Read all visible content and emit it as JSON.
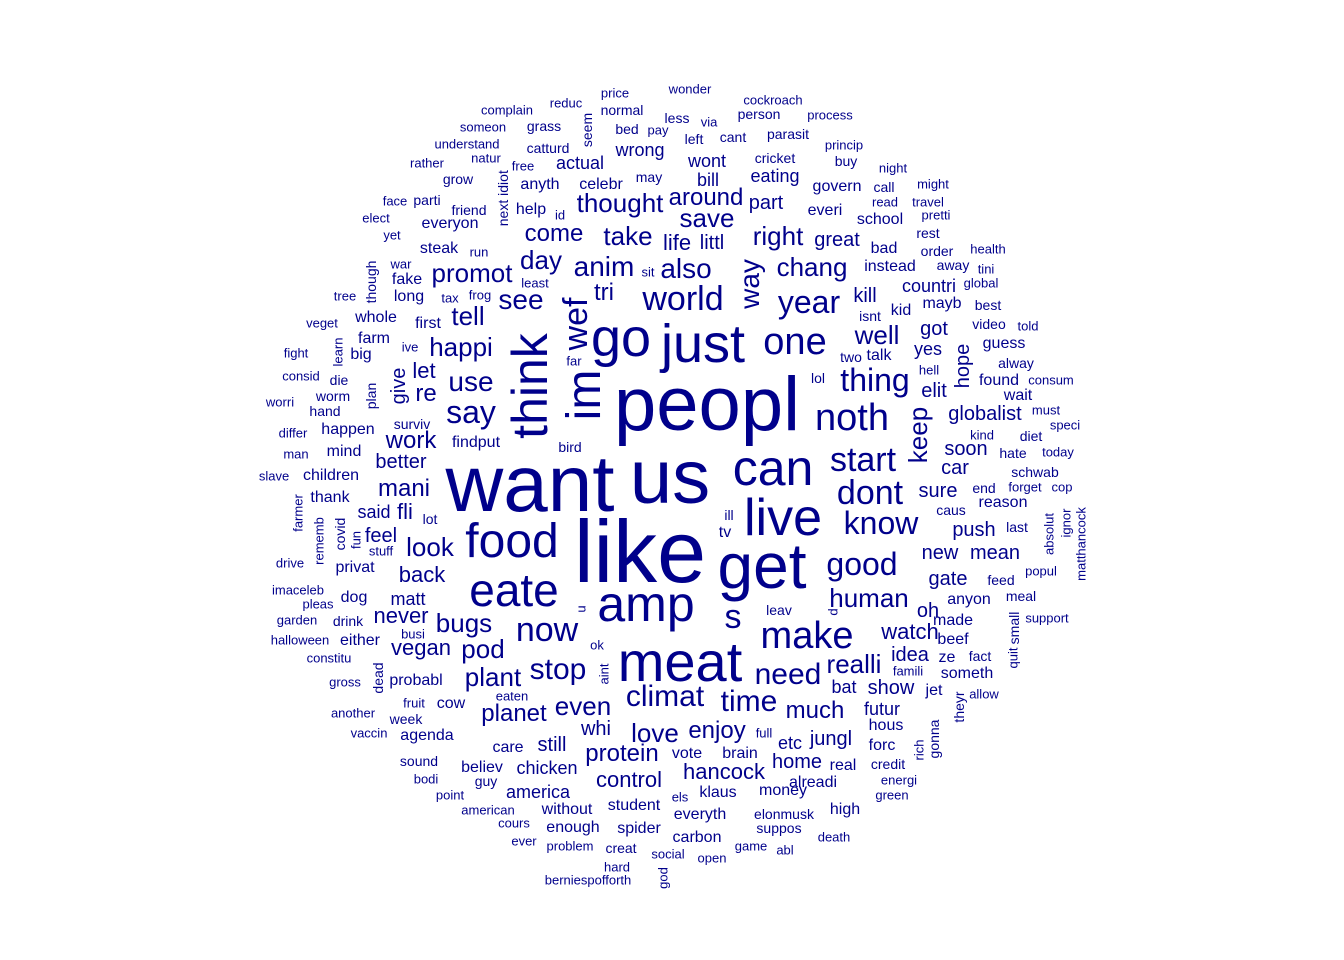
{
  "color": "#00008B",
  "words": [
    {
      "t": "peopl",
      "w": 10
    },
    {
      "t": "want",
      "w": 10
    },
    {
      "t": "us",
      "w": 10
    },
    {
      "t": "like",
      "w": 10
    },
    {
      "t": "get",
      "w": 9
    },
    {
      "t": "meat",
      "w": 9
    },
    {
      "t": "can",
      "w": 8
    },
    {
      "t": "live",
      "w": 8
    },
    {
      "t": "just",
      "w": 8
    },
    {
      "t": "go",
      "w": 8
    },
    {
      "t": "amp",
      "w": 8
    },
    {
      "t": "eate",
      "w": 8
    },
    {
      "t": "food",
      "w": 8
    },
    {
      "t": "think",
      "w": 8
    },
    {
      "t": "im",
      "w": 8
    },
    {
      "t": "make",
      "w": 7
    },
    {
      "t": "one",
      "w": 7
    },
    {
      "t": "noth",
      "w": 7
    },
    {
      "t": "world",
      "w": 6
    },
    {
      "t": "wef",
      "w": 6
    },
    {
      "t": "now",
      "w": 6
    },
    {
      "t": "start",
      "w": 6
    },
    {
      "t": "dont",
      "w": 6
    },
    {
      "t": "know",
      "w": 6
    },
    {
      "t": "good",
      "w": 6
    },
    {
      "t": "year",
      "w": 6
    },
    {
      "t": "thing",
      "w": 6
    },
    {
      "t": "say",
      "w": 6
    },
    {
      "t": "stop",
      "w": 6
    },
    {
      "t": "climat",
      "w": 6
    },
    {
      "t": "s",
      "w": 6
    },
    {
      "t": "need",
      "w": 5
    },
    {
      "t": "time",
      "w": 5
    },
    {
      "t": "human",
      "w": 5
    },
    {
      "t": "chang",
      "w": 5
    },
    {
      "t": "right",
      "w": 5
    },
    {
      "t": "anim",
      "w": 5
    },
    {
      "t": "also",
      "w": 5
    },
    {
      "t": "see",
      "w": 5
    },
    {
      "t": "use",
      "w": 5
    },
    {
      "t": "well",
      "w": 5
    },
    {
      "t": "way",
      "w": 5
    },
    {
      "t": "save",
      "w": 5
    },
    {
      "t": "take",
      "w": 5
    },
    {
      "t": "even",
      "w": 5
    },
    {
      "t": "love",
      "w": 5
    },
    {
      "t": "realli",
      "w": 5
    },
    {
      "t": "keep",
      "w": 5
    },
    {
      "t": "bugs",
      "w": 5
    },
    {
      "t": "pod",
      "w": 5
    },
    {
      "t": "plant",
      "w": 5
    },
    {
      "t": "look",
      "w": 5
    },
    {
      "t": "happi",
      "w": 5
    },
    {
      "t": "tell",
      "w": 5
    },
    {
      "t": "promot",
      "w": 5
    },
    {
      "t": "day",
      "w": 5
    },
    {
      "t": "come",
      "w": 5
    },
    {
      "t": "thought",
      "w": 5
    },
    {
      "t": "around",
      "w": 5
    },
    {
      "t": "planet",
      "w": 5
    },
    {
      "t": "much",
      "w": 5
    },
    {
      "t": "enjoy",
      "w": 5
    },
    {
      "t": "protein",
      "w": 5
    },
    {
      "t": "mani",
      "w": 5
    },
    {
      "t": "work",
      "w": 5
    },
    {
      "t": "re",
      "w": 5
    },
    {
      "t": "let",
      "w": 5
    },
    {
      "t": "tri",
      "w": 5
    },
    {
      "t": "watch",
      "w": 4
    },
    {
      "t": "hancock",
      "w": 4
    },
    {
      "t": "control",
      "w": 4
    },
    {
      "t": "vegan",
      "w": 4
    },
    {
      "t": "never",
      "w": 4
    },
    {
      "t": "back",
      "w": 4
    },
    {
      "t": "feel",
      "w": 4
    },
    {
      "t": "fli",
      "w": 4
    },
    {
      "t": "better",
      "w": 4
    },
    {
      "t": "give",
      "w": 4
    },
    {
      "t": "life",
      "w": 4
    },
    {
      "t": "littl",
      "w": 4
    },
    {
      "t": "part",
      "w": 4
    },
    {
      "t": "great",
      "w": 4
    },
    {
      "t": "kill",
      "w": 4
    },
    {
      "t": "countri",
      "w": 4
    },
    {
      "t": "got",
      "w": 4
    },
    {
      "t": "yes",
      "w": 4
    },
    {
      "t": "hope",
      "w": 4
    },
    {
      "t": "elit",
      "w": 4
    },
    {
      "t": "globalist",
      "w": 4
    },
    {
      "t": "soon",
      "w": 4
    },
    {
      "t": "car",
      "w": 4
    },
    {
      "t": "sure",
      "w": 4
    },
    {
      "t": "push",
      "w": 4
    },
    {
      "t": "new",
      "w": 4
    },
    {
      "t": "mean",
      "w": 4
    },
    {
      "t": "gate",
      "w": 4
    },
    {
      "t": "oh",
      "w": 4
    },
    {
      "t": "idea",
      "w": 4
    },
    {
      "t": "show",
      "w": 4
    },
    {
      "t": "bat",
      "w": 4
    },
    {
      "t": "futur",
      "w": 4
    },
    {
      "t": "jungl",
      "w": 4
    },
    {
      "t": "etc",
      "w": 4
    },
    {
      "t": "home",
      "w": 4
    },
    {
      "t": "still",
      "w": 4
    },
    {
      "t": "whi",
      "w": 4
    },
    {
      "t": "america",
      "w": 4
    },
    {
      "t": "chicken",
      "w": 4
    },
    {
      "t": "matt",
      "w": 4
    },
    {
      "t": "said",
      "w": 4
    },
    {
      "t": "talk",
      "w": 4
    },
    {
      "t": "everi",
      "w": 4
    },
    {
      "t": "bill",
      "w": 4
    },
    {
      "t": "wont",
      "w": 4
    },
    {
      "t": "eating",
      "w": 4
    },
    {
      "t": "actual",
      "w": 4
    },
    {
      "t": "anyth",
      "w": 4
    },
    {
      "t": "wrong",
      "w": 4
    },
    {
      "t": "made",
      "w": 4
    },
    {
      "t": "beef",
      "w": 4
    },
    {
      "t": "money",
      "w": 4
    },
    {
      "t": "klaus",
      "w": 4
    },
    {
      "t": "vote",
      "w": 4
    },
    {
      "t": "tv",
      "w": 4
    },
    {
      "t": "instead",
      "w": 3
    },
    {
      "t": "school",
      "w": 3
    },
    {
      "t": "bad",
      "w": 3
    },
    {
      "t": "govern",
      "w": 3
    },
    {
      "t": "kid",
      "w": 3
    },
    {
      "t": "mayb",
      "w": 3
    },
    {
      "t": "first",
      "w": 3
    },
    {
      "t": "farm",
      "w": 3
    },
    {
      "t": "whole",
      "w": 3
    },
    {
      "t": "long",
      "w": 3
    },
    {
      "t": "fake",
      "w": 3
    },
    {
      "t": "steak",
      "w": 3
    },
    {
      "t": "everyon",
      "w": 3
    },
    {
      "t": "help",
      "w": 3
    },
    {
      "t": "celebr",
      "w": 3
    },
    {
      "t": "lol",
      "w": 3
    },
    {
      "t": "two",
      "w": 3
    },
    {
      "t": "guess",
      "w": 3
    },
    {
      "t": "found",
      "w": 3
    },
    {
      "t": "wait",
      "w": 3
    },
    {
      "t": "diet",
      "w": 3
    },
    {
      "t": "hate",
      "w": 3
    },
    {
      "t": "schwab",
      "w": 3
    },
    {
      "t": "end",
      "w": 3
    },
    {
      "t": "reason",
      "w": 3
    },
    {
      "t": "caus",
      "w": 3
    },
    {
      "t": "last",
      "w": 3
    },
    {
      "t": "anyon",
      "w": 3
    },
    {
      "t": "feed",
      "w": 3
    },
    {
      "t": "meal",
      "w": 3
    },
    {
      "t": "ze",
      "w": 3
    },
    {
      "t": "someth",
      "w": 3
    },
    {
      "t": "fact",
      "w": 3
    },
    {
      "t": "jet",
      "w": 3
    },
    {
      "t": "hous",
      "w": 3
    },
    {
      "t": "forc",
      "w": 3
    },
    {
      "t": "credit",
      "w": 3
    },
    {
      "t": "real",
      "w": 3
    },
    {
      "t": "alreadi",
      "w": 3
    },
    {
      "t": "high",
      "w": 3
    },
    {
      "t": "suppos",
      "w": 3
    },
    {
      "t": "elonmusk",
      "w": 3
    },
    {
      "t": "everyth",
      "w": 3
    },
    {
      "t": "carbon",
      "w": 3
    },
    {
      "t": "spider",
      "w": 3
    },
    {
      "t": "student",
      "w": 3
    },
    {
      "t": "enough",
      "w": 3
    },
    {
      "t": "without",
      "w": 3
    },
    {
      "t": "creat",
      "w": 3
    },
    {
      "t": "care",
      "w": 3
    },
    {
      "t": "believ",
      "w": 3
    },
    {
      "t": "guy",
      "w": 3
    },
    {
      "t": "brain",
      "w": 3
    },
    {
      "t": "cow",
      "w": 3
    },
    {
      "t": "agenda",
      "w": 3
    },
    {
      "t": "week",
      "w": 3
    },
    {
      "t": "probabl",
      "w": 3
    },
    {
      "t": "sound",
      "w": 3
    },
    {
      "t": "drink",
      "w": 3
    },
    {
      "t": "dog",
      "w": 3
    },
    {
      "t": "either",
      "w": 3
    },
    {
      "t": "privat",
      "w": 3
    },
    {
      "t": "covid",
      "w": 3
    },
    {
      "t": "children",
      "w": 3
    },
    {
      "t": "thank",
      "w": 3
    },
    {
      "t": "happen",
      "w": 3
    },
    {
      "t": "mind",
      "w": 3
    },
    {
      "t": "surviv",
      "w": 3
    },
    {
      "t": "findput",
      "w": 3
    },
    {
      "t": "lot",
      "w": 3
    },
    {
      "t": "big",
      "w": 3
    },
    {
      "t": "die",
      "w": 3
    },
    {
      "t": "worm",
      "w": 3
    },
    {
      "t": "hand",
      "w": 3
    },
    {
      "t": "plan",
      "w": 3
    },
    {
      "t": "gonna",
      "w": 3
    },
    {
      "t": "theyr",
      "w": 3
    },
    {
      "t": "small",
      "w": 3
    },
    {
      "t": "seem",
      "w": 3
    },
    {
      "t": "idiot",
      "w": 3
    },
    {
      "t": "next",
      "w": 3
    },
    {
      "t": "though",
      "w": 3
    },
    {
      "t": "ill",
      "w": 3
    },
    {
      "t": "leav",
      "w": 3
    },
    {
      "t": "person",
      "w": 3
    },
    {
      "t": "parasit",
      "w": 3
    },
    {
      "t": "cricket",
      "w": 3
    },
    {
      "t": "cant",
      "w": 3
    },
    {
      "t": "left",
      "w": 3
    },
    {
      "t": "less",
      "w": 3
    },
    {
      "t": "catturd",
      "w": 3
    },
    {
      "t": "grass",
      "w": 3
    },
    {
      "t": "bed",
      "w": 3
    },
    {
      "t": "normal",
      "w": 3
    },
    {
      "t": "may",
      "w": 3
    },
    {
      "t": "grow",
      "w": 3
    },
    {
      "t": "friend",
      "w": 3
    },
    {
      "t": "parti",
      "w": 3
    },
    {
      "t": "rest",
      "w": 3
    },
    {
      "t": "order",
      "w": 3
    },
    {
      "t": "away",
      "w": 3
    },
    {
      "t": "call",
      "w": 3
    },
    {
      "t": "buy",
      "w": 3
    },
    {
      "t": "isnt",
      "w": 3
    },
    {
      "t": "video",
      "w": 3
    },
    {
      "t": "best",
      "w": 3
    },
    {
      "t": "alway",
      "w": 3
    },
    {
      "t": "bird",
      "w": 3
    },
    {
      "t": "busi",
      "w": 3
    },
    {
      "t": "gross",
      "w": 3
    },
    {
      "t": "dead",
      "w": 3
    },
    {
      "t": "wonder",
      "w": 2
    },
    {
      "t": "price",
      "w": 2
    },
    {
      "t": "cockroach",
      "w": 2
    },
    {
      "t": "complain",
      "w": 2
    },
    {
      "t": "reduc",
      "w": 2
    },
    {
      "t": "via",
      "w": 2
    },
    {
      "t": "process",
      "w": 2
    },
    {
      "t": "someon",
      "w": 2
    },
    {
      "t": "pay",
      "w": 2
    },
    {
      "t": "understand",
      "w": 2
    },
    {
      "t": "princip",
      "w": 2
    },
    {
      "t": "rather",
      "w": 2
    },
    {
      "t": "natur",
      "w": 2
    },
    {
      "t": "free",
      "w": 2
    },
    {
      "t": "night",
      "w": 2
    },
    {
      "t": "might",
      "w": 2
    },
    {
      "t": "face",
      "w": 2
    },
    {
      "t": "read",
      "w": 2
    },
    {
      "t": "travel",
      "w": 2
    },
    {
      "t": "elect",
      "w": 2
    },
    {
      "t": "id",
      "w": 2
    },
    {
      "t": "pretti",
      "w": 2
    },
    {
      "t": "yet",
      "w": 2
    },
    {
      "t": "run",
      "w": 2
    },
    {
      "t": "health",
      "w": 2
    },
    {
      "t": "war",
      "w": 2
    },
    {
      "t": "sit",
      "w": 2
    },
    {
      "t": "tini",
      "w": 2
    },
    {
      "t": "least",
      "w": 2
    },
    {
      "t": "global",
      "w": 2
    },
    {
      "t": "tree",
      "w": 2
    },
    {
      "t": "tax",
      "w": 2
    },
    {
      "t": "frog",
      "w": 2
    },
    {
      "t": "veget",
      "w": 2
    },
    {
      "t": "told",
      "w": 2
    },
    {
      "t": "fight",
      "w": 2
    },
    {
      "t": "learn",
      "w": 2
    },
    {
      "t": "ive",
      "w": 2
    },
    {
      "t": "far",
      "w": 2
    },
    {
      "t": "consid",
      "w": 2
    },
    {
      "t": "hell",
      "w": 2
    },
    {
      "t": "consum",
      "w": 2
    },
    {
      "t": "worri",
      "w": 2
    },
    {
      "t": "must",
      "w": 2
    },
    {
      "t": "speci",
      "w": 2
    },
    {
      "t": "differ",
      "w": 2
    },
    {
      "t": "kind",
      "w": 2
    },
    {
      "t": "today",
      "w": 2
    },
    {
      "t": "man",
      "w": 2
    },
    {
      "t": "slave",
      "w": 2
    },
    {
      "t": "forget",
      "w": 2
    },
    {
      "t": "cop",
      "w": 2
    },
    {
      "t": "farmer",
      "w": 2
    },
    {
      "t": "rememb",
      "w": 2
    },
    {
      "t": "fun",
      "w": 2
    },
    {
      "t": "stuff",
      "w": 2
    },
    {
      "t": "absolut",
      "w": 2
    },
    {
      "t": "ignor",
      "w": 2
    },
    {
      "t": "matthancock",
      "w": 2
    },
    {
      "t": "drive",
      "w": 2
    },
    {
      "t": "popul",
      "w": 2
    },
    {
      "t": "imaceleb",
      "w": 2
    },
    {
      "t": "pleas",
      "w": 2
    },
    {
      "t": "u",
      "w": 2
    },
    {
      "t": "garden",
      "w": 2
    },
    {
      "t": "d",
      "w": 2
    },
    {
      "t": "support",
      "w": 2
    },
    {
      "t": "halloween",
      "w": 2
    },
    {
      "t": "ok",
      "w": 2
    },
    {
      "t": "quit",
      "w": 2
    },
    {
      "t": "constitu",
      "w": 2
    },
    {
      "t": "aint",
      "w": 2
    },
    {
      "t": "eaten",
      "w": 2
    },
    {
      "t": "famili",
      "w": 2
    },
    {
      "t": "allow",
      "w": 2
    },
    {
      "t": "fruit",
      "w": 2
    },
    {
      "t": "another",
      "w": 2
    },
    {
      "t": "full",
      "w": 2
    },
    {
      "t": "vaccin",
      "w": 2
    },
    {
      "t": "rich",
      "w": 2
    },
    {
      "t": "bodi",
      "w": 2
    },
    {
      "t": "energi",
      "w": 2
    },
    {
      "t": "point",
      "w": 2
    },
    {
      "t": "els",
      "w": 2
    },
    {
      "t": "green",
      "w": 2
    },
    {
      "t": "american",
      "w": 2
    },
    {
      "t": "cours",
      "w": 2
    },
    {
      "t": "death",
      "w": 2
    },
    {
      "t": "ever",
      "w": 2
    },
    {
      "t": "problem",
      "w": 2
    },
    {
      "t": "game",
      "w": 2
    },
    {
      "t": "abl",
      "w": 2
    },
    {
      "t": "social",
      "w": 2
    },
    {
      "t": "open",
      "w": 2
    },
    {
      "t": "hard",
      "w": 2
    },
    {
      "t": "god",
      "w": 2
    },
    {
      "t": "berniespofforth",
      "w": 2
    }
  ]
}
